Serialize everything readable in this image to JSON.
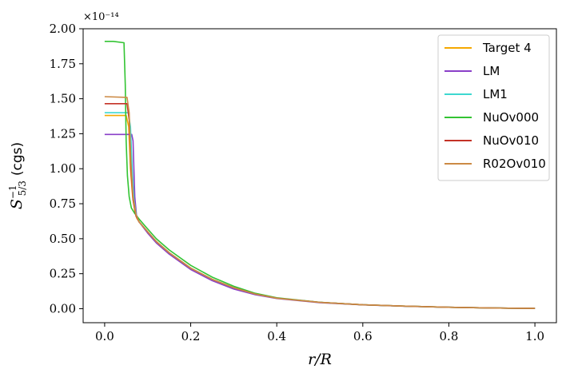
{
  "chart_data": {
    "type": "line",
    "xlabel": "r/R",
    "ylabel": "S_{5/3}^{-1} (cgs)",
    "ylabel_parts": {
      "symbol": "S",
      "sup": "−1",
      "sub": "5/3",
      "unit": "(cgs)"
    },
    "y_multiplier": "×10⁻¹⁴",
    "xlim": [
      -0.05,
      1.05
    ],
    "ylim": [
      -0.1,
      2.0
    ],
    "x_ticks": [
      "0.0",
      "0.2",
      "0.4",
      "0.6",
      "0.8",
      "1.0"
    ],
    "y_ticks": [
      "0.00",
      "0.25",
      "0.50",
      "0.75",
      "1.00",
      "1.25",
      "1.50",
      "1.75",
      "2.00"
    ],
    "grid": false,
    "legend_position": "top-right",
    "series": [
      {
        "name": "Target 4",
        "color": "#f5a800",
        "points": [
          [
            0,
            1.38
          ],
          [
            0.05,
            1.38
          ],
          [
            0.056,
            1.3
          ],
          [
            0.06,
            1.0
          ],
          [
            0.065,
            0.8
          ],
          [
            0.07,
            0.7
          ],
          [
            0.075,
            0.645
          ],
          [
            0.08,
            0.62
          ],
          [
            0.1,
            0.55
          ],
          [
            0.12,
            0.48
          ],
          [
            0.15,
            0.4
          ],
          [
            0.2,
            0.29
          ],
          [
            0.25,
            0.21
          ],
          [
            0.3,
            0.15
          ],
          [
            0.35,
            0.105
          ],
          [
            0.4,
            0.075
          ],
          [
            0.5,
            0.045
          ],
          [
            0.6,
            0.028
          ],
          [
            0.7,
            0.018
          ],
          [
            0.8,
            0.01
          ],
          [
            0.9,
            0.005
          ],
          [
            1.0,
            0.002
          ]
        ]
      },
      {
        "name": "LM",
        "color": "#8a3fc8",
        "points": [
          [
            0,
            1.245
          ],
          [
            0.063,
            1.245
          ],
          [
            0.066,
            1.2
          ],
          [
            0.07,
            0.8
          ],
          [
            0.074,
            0.67
          ],
          [
            0.08,
            0.62
          ],
          [
            0.1,
            0.54
          ],
          [
            0.12,
            0.47
          ],
          [
            0.15,
            0.39
          ],
          [
            0.2,
            0.28
          ],
          [
            0.25,
            0.2
          ],
          [
            0.3,
            0.14
          ],
          [
            0.35,
            0.1
          ],
          [
            0.4,
            0.073
          ],
          [
            0.5,
            0.043
          ],
          [
            0.6,
            0.027
          ],
          [
            0.7,
            0.017
          ],
          [
            0.8,
            0.01
          ],
          [
            0.9,
            0.005
          ],
          [
            1.0,
            0.002
          ]
        ]
      },
      {
        "name": "LM1",
        "color": "#3ed8d0",
        "points": [
          [
            0,
            1.4
          ],
          [
            0.055,
            1.4
          ],
          [
            0.06,
            1.3
          ],
          [
            0.064,
            1.0
          ],
          [
            0.068,
            0.78
          ],
          [
            0.074,
            0.66
          ],
          [
            0.08,
            0.62
          ],
          [
            0.1,
            0.55
          ],
          [
            0.12,
            0.48
          ],
          [
            0.15,
            0.4
          ],
          [
            0.2,
            0.29
          ],
          [
            0.25,
            0.21
          ],
          [
            0.3,
            0.15
          ],
          [
            0.35,
            0.105
          ],
          [
            0.4,
            0.075
          ],
          [
            0.5,
            0.045
          ],
          [
            0.6,
            0.028
          ],
          [
            0.7,
            0.018
          ],
          [
            0.8,
            0.01
          ],
          [
            0.9,
            0.005
          ],
          [
            1.0,
            0.002
          ]
        ]
      },
      {
        "name": "NuOv000",
        "color": "#33c433",
        "points": [
          [
            0,
            1.91
          ],
          [
            0.02,
            1.91
          ],
          [
            0.045,
            1.9
          ],
          [
            0.048,
            1.6
          ],
          [
            0.05,
            1.2
          ],
          [
            0.053,
            0.95
          ],
          [
            0.057,
            0.8
          ],
          [
            0.062,
            0.72
          ],
          [
            0.07,
            0.68
          ],
          [
            0.08,
            0.64
          ],
          [
            0.1,
            0.57
          ],
          [
            0.12,
            0.5
          ],
          [
            0.15,
            0.42
          ],
          [
            0.2,
            0.31
          ],
          [
            0.25,
            0.225
          ],
          [
            0.3,
            0.16
          ],
          [
            0.35,
            0.11
          ],
          [
            0.4,
            0.078
          ],
          [
            0.5,
            0.046
          ],
          [
            0.6,
            0.028
          ],
          [
            0.7,
            0.018
          ],
          [
            0.8,
            0.01
          ],
          [
            0.9,
            0.005
          ],
          [
            1.0,
            0.002
          ]
        ]
      },
      {
        "name": "NuOv010",
        "color": "#c43226",
        "points": [
          [
            0,
            1.465
          ],
          [
            0.052,
            1.465
          ],
          [
            0.057,
            1.35
          ],
          [
            0.061,
            1.0
          ],
          [
            0.066,
            0.78
          ],
          [
            0.073,
            0.66
          ],
          [
            0.08,
            0.62
          ],
          [
            0.1,
            0.55
          ],
          [
            0.12,
            0.48
          ],
          [
            0.15,
            0.4
          ],
          [
            0.2,
            0.29
          ],
          [
            0.25,
            0.21
          ],
          [
            0.3,
            0.15
          ],
          [
            0.35,
            0.105
          ],
          [
            0.4,
            0.075
          ],
          [
            0.5,
            0.045
          ],
          [
            0.6,
            0.028
          ],
          [
            0.7,
            0.018
          ],
          [
            0.8,
            0.01
          ],
          [
            0.9,
            0.005
          ],
          [
            1.0,
            0.002
          ]
        ]
      },
      {
        "name": "R02Ov010",
        "color": "#cc8a45",
        "points": [
          [
            0,
            1.515
          ],
          [
            0.052,
            1.51
          ],
          [
            0.057,
            1.4
          ],
          [
            0.061,
            1.05
          ],
          [
            0.066,
            0.8
          ],
          [
            0.073,
            0.67
          ],
          [
            0.08,
            0.62
          ],
          [
            0.1,
            0.55
          ],
          [
            0.12,
            0.48
          ],
          [
            0.15,
            0.4
          ],
          [
            0.2,
            0.29
          ],
          [
            0.25,
            0.21
          ],
          [
            0.3,
            0.15
          ],
          [
            0.35,
            0.105
          ],
          [
            0.4,
            0.075
          ],
          [
            0.5,
            0.045
          ],
          [
            0.6,
            0.028
          ],
          [
            0.7,
            0.018
          ],
          [
            0.8,
            0.01
          ],
          [
            0.9,
            0.005
          ],
          [
            1.0,
            0.002
          ]
        ]
      }
    ]
  }
}
